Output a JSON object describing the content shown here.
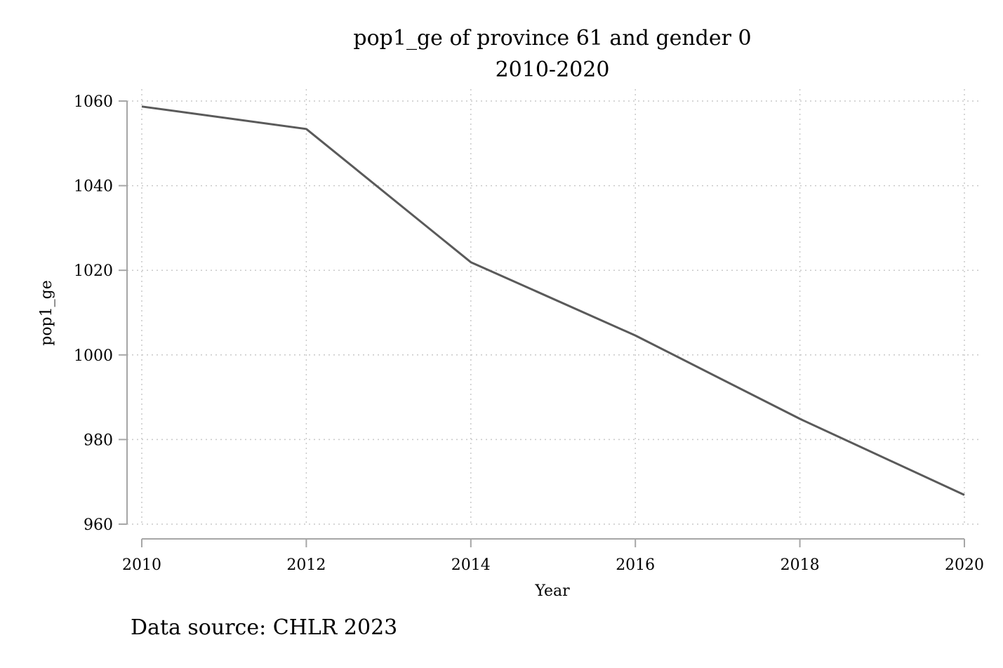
{
  "chart_data": {
    "type": "line",
    "title": "pop1_ge of province 61 and gender 0",
    "subtitle": "2010-2020",
    "xlabel": "Year",
    "ylabel": "pop1_ge",
    "note": "Data source: CHLR 2023",
    "x": [
      2010,
      2012,
      2014,
      2016,
      2018,
      2020
    ],
    "series": [
      {
        "values": [
          1058.7,
          1053.4,
          1021.9,
          1004.6,
          984.9,
          966.9
        ]
      }
    ],
    "xticks": [
      "2010",
      "2012",
      "2014",
      "2016",
      "2018",
      "2020"
    ],
    "yticks": [
      "960",
      "980",
      "1000",
      "1020",
      "1040",
      "1060"
    ],
    "xlim": [
      2010,
      2020
    ],
    "ylim": [
      960,
      1060
    ],
    "grid": true,
    "colors": {
      "line": "#5a5a5a",
      "grid": "#c9c9c9",
      "axis": "#a6a6a6"
    }
  }
}
